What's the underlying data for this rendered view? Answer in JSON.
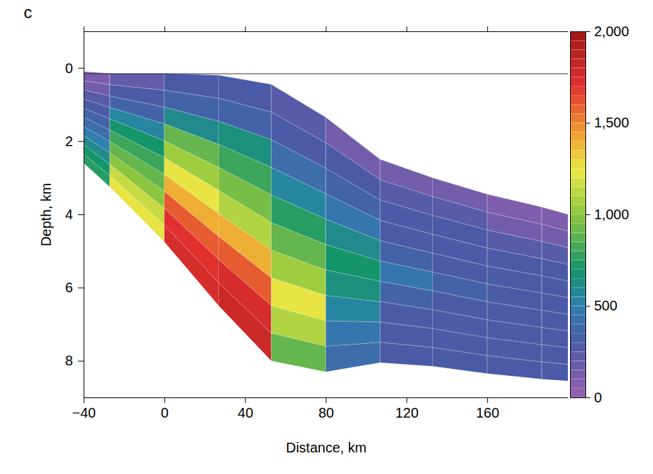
{
  "chart_data": {
    "type": "heatmap",
    "panel_label": "c",
    "x_label": "Distance, km",
    "y_label": "Depth, km",
    "xlim": [
      -40,
      200
    ],
    "xticks": [
      -40,
      0,
      40,
      80,
      120,
      160
    ],
    "ylim": [
      -1,
      9
    ],
    "yticks": [
      0,
      2,
      4,
      6,
      8
    ],
    "reference_line": 0.15,
    "column_edges": [
      -40,
      -27,
      0,
      27,
      53,
      80,
      107,
      133,
      160,
      187,
      200
    ],
    "top_depth": [
      0.1,
      0.15,
      0.15,
      0.2,
      0.45,
      1.35,
      2.5,
      3.0,
      3.45,
      3.8,
      4.0
    ],
    "bottom_depth": [
      2.6,
      3.25,
      4.75,
      6.5,
      8.0,
      8.3,
      8.05,
      8.15,
      8.35,
      8.5,
      8.55
    ],
    "cells": [
      [
        100,
        150,
        250,
        300,
        350,
        400,
        500,
        600,
        700,
        750
      ],
      [
        200,
        300,
        350,
        550,
        700,
        800,
        900,
        1000,
        1150,
        1250
      ],
      [
        300,
        350,
        600,
        900,
        1050,
        1250,
        1400,
        1600,
        1700,
        1750
      ],
      [
        300,
        350,
        650,
        800,
        950,
        1100,
        1400,
        1600,
        1750,
        1800
      ],
      [
        250,
        300,
        400,
        550,
        750,
        900,
        1050,
        1250,
        1100,
        900
      ],
      [
        150,
        300,
        350,
        450,
        600,
        700,
        650,
        550,
        450,
        400
      ],
      [
        150,
        250,
        300,
        300,
        350,
        450,
        350,
        300,
        300,
        300
      ],
      [
        150,
        250,
        300,
        300,
        300,
        350,
        300,
        300,
        300,
        300
      ],
      [
        100,
        150,
        250,
        300,
        300,
        300,
        300,
        300,
        300,
        300
      ],
      [
        100,
        150,
        250,
        300,
        300,
        300,
        300,
        300,
        300,
        300
      ]
    ],
    "colorbar": {
      "range": [
        0,
        2000
      ],
      "ticks": [
        0,
        500,
        1000,
        1500,
        2000
      ]
    }
  }
}
